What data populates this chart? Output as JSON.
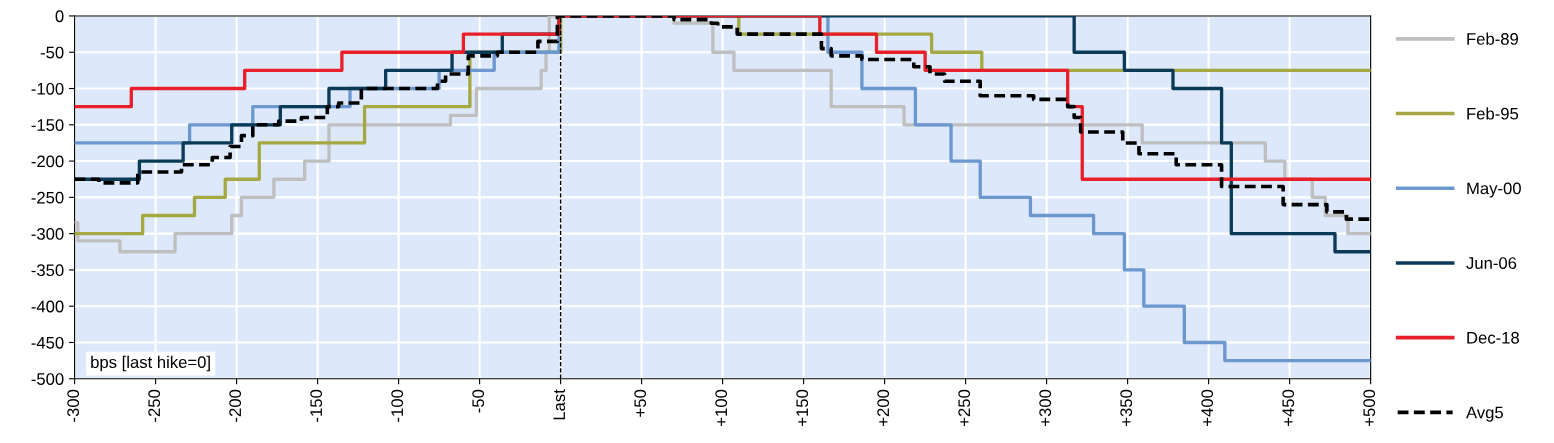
{
  "chart_data": {
    "type": "step",
    "xlim": [
      -300,
      500
    ],
    "ylim": [
      -500,
      0
    ],
    "xticks": [
      -300,
      -250,
      -200,
      -150,
      -100,
      -50,
      {
        "value": 0,
        "label": "Last"
      },
      {
        "value": 50,
        "label": "+50"
      },
      {
        "value": 100,
        "label": "+100"
      },
      {
        "value": 150,
        "label": "+150"
      },
      {
        "value": 200,
        "label": "+200"
      },
      {
        "value": 250,
        "label": "+250"
      },
      {
        "value": 300,
        "label": "+300"
      },
      {
        "value": 350,
        "label": "+350"
      },
      {
        "value": 400,
        "label": "+400"
      },
      {
        "value": 450,
        "label": "+450"
      },
      {
        "value": 500,
        "label": "+500"
      }
    ],
    "yticks": [
      -500,
      -450,
      -400,
      -350,
      -300,
      -250,
      -200,
      -150,
      -100,
      -50,
      0
    ],
    "grid": true,
    "legend": "right",
    "marker": "none",
    "series": [
      {
        "name": "Feb-89",
        "color": "#bfbfbf",
        "line_style": "solid",
        "x": [
          -300,
          -298,
          -272,
          -238,
          -203,
          -197,
          -177,
          -158,
          -143,
          -68,
          -52,
          -12,
          -9,
          -7,
          70,
          94,
          107,
          167,
          212,
          359,
          435,
          447,
          464,
          472,
          486,
          500
        ],
        "values": [
          -285,
          -310,
          -325,
          -300,
          -275,
          -250,
          -225,
          -200,
          -150,
          -137,
          -100,
          -75,
          -50,
          0,
          -10,
          -50,
          -75,
          -125,
          -150,
          -175,
          -200,
          -225,
          -250,
          -275,
          -300,
          -300
        ]
      },
      {
        "name": "Feb-95",
        "color": "#a5a843",
        "line_style": "solid",
        "x": [
          -300,
          -258,
          -226,
          -207,
          -186,
          -121,
          -56,
          0,
          110,
          229,
          260,
          500
        ],
        "values": [
          -300,
          -275,
          -250,
          -225,
          -175,
          -125,
          -50,
          0,
          -25,
          -50,
          -75,
          -75
        ]
      },
      {
        "name": "May-00",
        "color": "#6c97cf",
        "line_style": "solid",
        "x": [
          -300,
          -229,
          -190,
          -130,
          -75,
          -41,
          -1,
          165,
          186,
          219,
          241,
          259,
          290,
          329,
          348,
          360,
          385,
          410,
          500
        ],
        "values": [
          -175,
          -150,
          -125,
          -100,
          -75,
          -50,
          0,
          -50,
          -100,
          -150,
          -200,
          -250,
          -275,
          -300,
          -350,
          -400,
          -450,
          -475,
          -475
        ]
      },
      {
        "name": "Jun-06",
        "color": "#0b3a57",
        "line_style": "solid",
        "x": [
          -300,
          -260,
          -233,
          -203,
          -173,
          -143,
          -108,
          -67,
          -36,
          -1,
          317,
          348,
          378,
          408,
          414,
          478,
          500
        ],
        "values": [
          -225,
          -200,
          -175,
          -150,
          -125,
          -100,
          -75,
          -50,
          -25,
          0,
          -50,
          -75,
          -100,
          -175,
          -300,
          -325,
          -325
        ]
      },
      {
        "name": "Dec-18",
        "color": "#e8202a",
        "line_style": "solid",
        "x": [
          -300,
          -265,
          -195,
          -135,
          -60,
          -1,
          160,
          195,
          225,
          313,
          322,
          500
        ],
        "values": [
          -125,
          -100,
          -75,
          -50,
          -25,
          0,
          -25,
          -50,
          -75,
          -125,
          -225,
          -225
        ]
      },
      {
        "name": "Avg5",
        "color": "#000000",
        "line_style": "dashed",
        "x": [
          -300,
          -285,
          -261,
          -234,
          -215,
          -204,
          -197,
          -190,
          -174,
          -160,
          -144,
          -137,
          -123,
          -76,
          -71,
          -57,
          -39,
          -14,
          -2,
          70,
          93,
          97,
          109,
          161,
          167,
          186,
          218,
          228,
          237,
          259,
          292,
          313,
          317,
          321,
          347,
          357,
          380,
          408,
          446,
          473,
          485,
          500
        ],
        "values": [
          -225,
          -230,
          -215,
          -205,
          -195,
          -180,
          -165,
          -150,
          -145,
          -140,
          -125,
          -120,
          -100,
          -90,
          -80,
          -55,
          -50,
          -35,
          0,
          -5,
          -10,
          -15,
          -25,
          -45,
          -55,
          -60,
          -70,
          -80,
          -90,
          -110,
          -115,
          -125,
          -140,
          -160,
          -175,
          -190,
          -205,
          -235,
          -260,
          -270,
          -280,
          -280
        ]
      }
    ],
    "ref_lines": [
      {
        "axis": "x",
        "value": 0,
        "color": "#000000",
        "line_style": "dashed"
      }
    ],
    "annotations": [
      "bps [last hike=0]"
    ]
  }
}
